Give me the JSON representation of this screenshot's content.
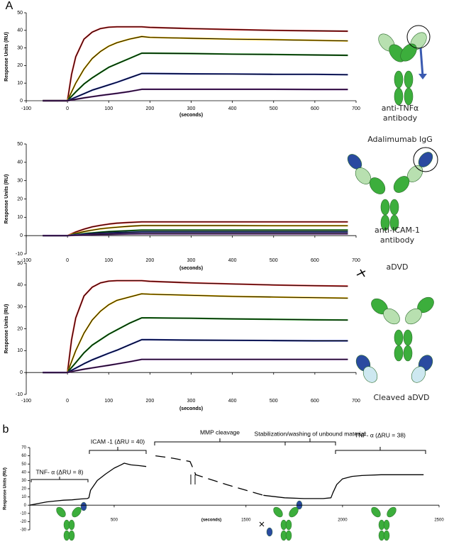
{
  "chart_data": [
    {
      "type": "line",
      "panel": "A",
      "ylabel": "Response Units (RU)",
      "xlabel": "(seconds)",
      "x": [
        -60,
        0,
        10,
        20,
        40,
        60,
        80,
        100,
        120,
        150,
        180,
        200,
        300,
        400,
        500,
        600,
        680
      ],
      "xlim": [
        -100,
        700
      ],
      "xticks": [
        -100,
        0,
        100,
        200,
        300,
        400,
        500,
        600,
        700
      ],
      "ylim": [
        0,
        50
      ],
      "yticks": [
        0,
        10,
        20,
        30,
        40,
        50
      ],
      "fit_color": "#000000",
      "series": [
        {
          "color": "#e03030",
          "values": [
            0,
            0,
            15,
            25,
            35,
            39,
            41,
            41.8,
            42,
            42,
            42,
            41.7,
            41,
            40.5,
            40,
            39.7,
            39.5
          ]
        },
        {
          "color": "#e8b800",
          "values": [
            0,
            0,
            5,
            10,
            18,
            24,
            28,
            31,
            33,
            35,
            36.5,
            36,
            35.5,
            35,
            34.7,
            34.3,
            34
          ]
        },
        {
          "color": "#1a8a1a",
          "values": [
            0,
            0,
            2.5,
            5,
            9.5,
            13,
            16,
            19,
            21,
            24,
            27,
            27,
            26.8,
            26.5,
            26.3,
            26,
            25.8
          ]
        },
        {
          "color": "#2030a0",
          "values": [
            0,
            0,
            1,
            2,
            4,
            6,
            7.5,
            9,
            10.5,
            13,
            15.5,
            15.5,
            15.3,
            15.2,
            15,
            15,
            14.8
          ]
        },
        {
          "color": "#6a2a8a",
          "values": [
            0,
            0,
            0.4,
            0.8,
            1.6,
            2.3,
            3,
            3.6,
            4.2,
            5.2,
            6.5,
            6.5,
            6.5,
            6.5,
            6.5,
            6.4,
            6.4
          ]
        }
      ],
      "annotations": [
        "anti-TNFα antibody",
        "Adalimumab IgG"
      ]
    },
    {
      "type": "line",
      "ylabel": "Response Units (RU)",
      "xlabel": "(seconds)",
      "x": [
        -60,
        0,
        10,
        20,
        40,
        60,
        80,
        100,
        120,
        150,
        180,
        200,
        300,
        400,
        500,
        600,
        680
      ],
      "xlim": [
        -100,
        700
      ],
      "xticks": [
        -100,
        0,
        100,
        200,
        300,
        400,
        500,
        600,
        700
      ],
      "ylim": [
        -10,
        50
      ],
      "yticks": [
        -10,
        0,
        10,
        20,
        30,
        40,
        50
      ],
      "fit_color": "#000000",
      "series": [
        {
          "color": "#e03030",
          "values": [
            0,
            0,
            1,
            2,
            3.5,
            4.8,
            5.6,
            6.3,
            6.8,
            7.2,
            7.5,
            7.5,
            7.5,
            7.5,
            7.5,
            7.5,
            7.5
          ]
        },
        {
          "color": "#e8b800",
          "values": [
            0,
            0,
            0.6,
            1.2,
            2.2,
            3,
            3.7,
            4.2,
            4.6,
            5.1,
            5.5,
            5.5,
            5.5,
            5.5,
            5.4,
            5.4,
            5.4
          ]
        },
        {
          "color": "#1a8a1a",
          "values": [
            0,
            0,
            0.3,
            0.6,
            1.1,
            1.5,
            1.9,
            2.2,
            2.4,
            2.7,
            3,
            3,
            3,
            3,
            3,
            3,
            3
          ]
        },
        {
          "color": "#2030a0",
          "values": [
            0,
            0,
            0.2,
            0.4,
            0.7,
            1,
            1.2,
            1.4,
            1.6,
            1.8,
            2,
            2,
            2,
            2,
            2,
            2,
            2
          ]
        },
        {
          "color": "#6a2a8a",
          "values": [
            0,
            0,
            0.1,
            0.2,
            0.3,
            0.5,
            0.6,
            0.7,
            0.8,
            0.9,
            1,
            1,
            1,
            1,
            1,
            1,
            1
          ]
        }
      ],
      "annotations": [
        "anti-ICAM-1 antibody",
        "aDVD"
      ]
    },
    {
      "type": "line",
      "ylabel": "Response Units (RU)",
      "xlabel": "(seconds)",
      "x": [
        -60,
        0,
        10,
        20,
        40,
        60,
        80,
        100,
        120,
        150,
        180,
        200,
        300,
        400,
        500,
        600,
        680
      ],
      "xlim": [
        -100,
        700
      ],
      "xticks": [
        -100,
        0,
        100,
        200,
        300,
        400,
        500,
        600,
        700
      ],
      "ylim": [
        -10,
        50
      ],
      "yticks": [
        -10,
        0,
        10,
        20,
        30,
        40,
        50
      ],
      "fit_color": "#000000",
      "series": [
        {
          "color": "#e03030",
          "values": [
            0,
            0,
            15,
            25,
            35,
            39,
            41,
            41.8,
            42,
            42,
            42,
            41.7,
            41,
            40.5,
            40,
            39.7,
            39.5
          ]
        },
        {
          "color": "#e8b800",
          "values": [
            0,
            0,
            5,
            10,
            18,
            24,
            28,
            31,
            33,
            34.5,
            36,
            35.8,
            35.3,
            34.8,
            34.5,
            34.2,
            34
          ]
        },
        {
          "color": "#1a8a1a",
          "values": [
            0,
            0,
            2.3,
            4.5,
            9,
            12.5,
            15,
            17.5,
            19.5,
            22.5,
            25,
            25,
            24.8,
            24.5,
            24.3,
            24.1,
            24
          ]
        },
        {
          "color": "#2030a0",
          "values": [
            0,
            0,
            1,
            2,
            4,
            5.8,
            7.3,
            8.8,
            10.2,
            12.6,
            15,
            15,
            14.8,
            14.7,
            14.6,
            14.5,
            14.5
          ]
        },
        {
          "color": "#6a2a8a",
          "values": [
            0,
            0,
            0.4,
            0.8,
            1.5,
            2.1,
            2.7,
            3.3,
            3.9,
            4.9,
            6,
            6,
            6,
            6,
            6,
            6,
            6
          ]
        }
      ],
      "annotations": [
        "Cleaved aDVD"
      ]
    },
    {
      "type": "line",
      "panel": "b",
      "ylabel": "Response Units (RU)",
      "xlabel": "(seconds)",
      "x": [
        0,
        50,
        100,
        150,
        200,
        250,
        300,
        340,
        350,
        360,
        400,
        450,
        500,
        540,
        560,
        580,
        600,
        650,
        690,
        745,
        850,
        950,
        1240,
        1400,
        1590,
        1700,
        1800,
        1900,
        1940,
        1950,
        1970,
        2000,
        2050,
        2100,
        2200,
        2300,
        2420
      ],
      "xlim": [
        0,
        2500
      ],
      "xticks": [
        500,
        1500,
        2000,
        2500
      ],
      "xbreak": [
        950,
        1240
      ],
      "ylim": [
        -30,
        70
      ],
      "yticks": [
        -30,
        -20,
        -10,
        0,
        10,
        20,
        30,
        40,
        50,
        60,
        70
      ],
      "series": [
        {
          "color": "#000000",
          "values": [
            0,
            2,
            4,
            5,
            6,
            6.5,
            7.5,
            8,
            9,
            18,
            30,
            38,
            45,
            49,
            51,
            50,
            49,
            48,
            47,
            null,
            null,
            null,
            null,
            null,
            12,
            9,
            8,
            8,
            9,
            15,
            25,
            32,
            35,
            36,
            37,
            37,
            37
          ]
        },
        {
          "color": "#000000",
          "dashed": true,
          "values": [
            null,
            null,
            null,
            null,
            null,
            null,
            null,
            null,
            null,
            null,
            null,
            null,
            null,
            null,
            null,
            null,
            null,
            null,
            null,
            60,
            57,
            53,
            37,
            25,
            12,
            null,
            null,
            null,
            null,
            null,
            null,
            null,
            null,
            null,
            null,
            null,
            null
          ]
        }
      ],
      "annotations": [
        "TNF- α (ΔRU = 8)",
        "ICAM -1 (ΔRU = 40)",
        "MMP cleavage",
        "Stabilization/washing of unbound material",
        "TNF- α (ΔRU = 38)"
      ]
    }
  ]
}
